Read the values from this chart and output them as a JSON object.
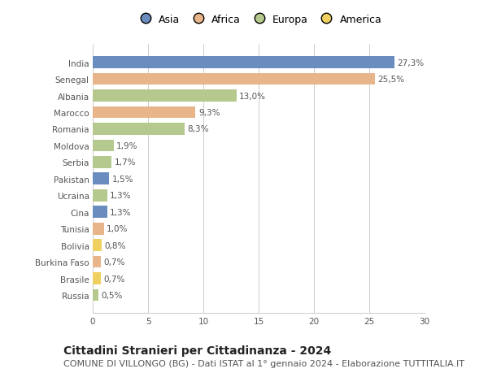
{
  "countries": [
    "India",
    "Senegal",
    "Albania",
    "Marocco",
    "Romania",
    "Moldova",
    "Serbia",
    "Pakistan",
    "Ucraina",
    "Cina",
    "Tunisia",
    "Bolivia",
    "Burkina Faso",
    "Brasile",
    "Russia"
  ],
  "values": [
    27.3,
    25.5,
    13.0,
    9.3,
    8.3,
    1.9,
    1.7,
    1.5,
    1.3,
    1.3,
    1.0,
    0.8,
    0.7,
    0.7,
    0.5
  ],
  "labels": [
    "27,3%",
    "25,5%",
    "13,0%",
    "9,3%",
    "8,3%",
    "1,9%",
    "1,7%",
    "1,5%",
    "1,3%",
    "1,3%",
    "1,0%",
    "0,8%",
    "0,7%",
    "0,7%",
    "0,5%"
  ],
  "continent": [
    "Asia",
    "Africa",
    "Europa",
    "Africa",
    "Europa",
    "Europa",
    "Europa",
    "Asia",
    "Europa",
    "Asia",
    "Africa",
    "America",
    "Africa",
    "America",
    "Europa"
  ],
  "colors": {
    "Asia": "#6b8cbf",
    "Africa": "#e8b48a",
    "Europa": "#b5c98e",
    "America": "#f0d060"
  },
  "legend_order": [
    "Asia",
    "Africa",
    "Europa",
    "America"
  ],
  "xlim": [
    0,
    30
  ],
  "xticks": [
    0,
    5,
    10,
    15,
    20,
    25,
    30
  ],
  "title": "Cittadini Stranieri per Cittadinanza - 2024",
  "subtitle": "COMUNE DI VILLONGO (BG) - Dati ISTAT al 1° gennaio 2024 - Elaborazione TUTTITALIA.IT",
  "background_color": "#ffffff",
  "grid_color": "#cccccc",
  "bar_height": 0.72,
  "title_fontsize": 10,
  "subtitle_fontsize": 8,
  "tick_fontsize": 7.5,
  "label_fontsize": 7.5,
  "legend_fontsize": 9
}
